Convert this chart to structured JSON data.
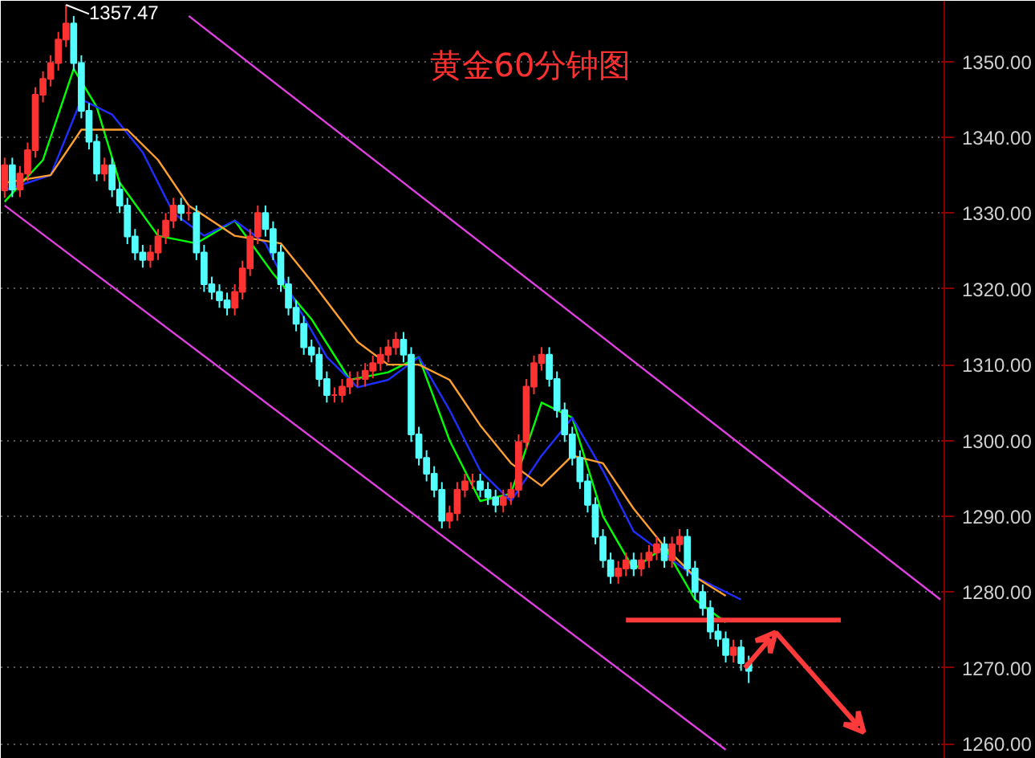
{
  "chart_data": {
    "type": "candlestick",
    "title": "黄金60分钟图",
    "categories": [
      null,
      null,
      null,
      null,
      null,
      null,
      null,
      null,
      null,
      null,
      null,
      null,
      null,
      null,
      null,
      null,
      null,
      null,
      null,
      null,
      null,
      null,
      null,
      null,
      null,
      null,
      null,
      null,
      null,
      null,
      null,
      null,
      null,
      null,
      null,
      null,
      null,
      null,
      null,
      null,
      null,
      null,
      null,
      null,
      null,
      null,
      null,
      null,
      null,
      null,
      null,
      null,
      null,
      null,
      null,
      null,
      null,
      null,
      null,
      null,
      null,
      null,
      null,
      null,
      null,
      null,
      null,
      null,
      null,
      null,
      null,
      null,
      null,
      null,
      null,
      null,
      null,
      null,
      null,
      null,
      null,
      null,
      null,
      null,
      null,
      null,
      null,
      null,
      null,
      null,
      null,
      null,
      null,
      null,
      null,
      null,
      null,
      null,
      null,
      null,
      null,
      null,
      null,
      null,
      null,
      null,
      null,
      null,
      null,
      null,
      null,
      null,
      null,
      null,
      null,
      null,
      null,
      null,
      null,
      null,
      null,
      null,
      null
    ],
    "ohlc": [
      [
        1333.0,
        1337.3,
        1332.0,
        1336.3
      ],
      [
        1336.3,
        1337.3,
        1332.1,
        1333.1
      ],
      [
        1333.1,
        1336.2,
        1332.1,
        1335.2
      ],
      [
        1335.2,
        1339.3,
        1334.2,
        1338.3
      ],
      [
        1338.3,
        1346.6,
        1337.3,
        1345.6
      ],
      [
        1345.6,
        1348.7,
        1344.6,
        1347.7
      ],
      [
        1347.7,
        1350.8,
        1346.7,
        1349.8
      ],
      [
        1349.8,
        1353.9,
        1348.8,
        1352.9
      ],
      [
        1352.9,
        1357.47,
        1351.9,
        1355.0
      ],
      [
        1355.0,
        1356.0,
        1348.8,
        1349.8
      ],
      [
        1349.8,
        1350.8,
        1342.5,
        1343.5
      ],
      [
        1343.5,
        1344.5,
        1338.4,
        1339.4
      ],
      [
        1339.4,
        1340.4,
        1334.2,
        1335.2
      ],
      [
        1335.2,
        1337.3,
        1334.2,
        1336.3
      ],
      [
        1336.3,
        1337.3,
        1332.1,
        1333.1
      ],
      [
        1333.1,
        1334.1,
        1330.0,
        1331.0
      ],
      [
        1331.0,
        1332.0,
        1325.9,
        1326.9
      ],
      [
        1326.9,
        1327.9,
        1323.8,
        1324.8
      ],
      [
        1324.8,
        1325.8,
        1322.8,
        1323.8
      ],
      [
        1323.8,
        1325.8,
        1322.8,
        1324.8
      ],
      [
        1324.8,
        1327.9,
        1323.8,
        1326.9
      ],
      [
        1326.9,
        1330.0,
        1325.9,
        1329.0
      ],
      [
        1329.0,
        1332.0,
        1328.0,
        1331.0
      ],
      [
        1331.0,
        1332.0,
        1329.0,
        1330.0
      ],
      [
        1330.0,
        1331.0,
        1329.0,
        1330.0
      ],
      [
        1330.0,
        1331.0,
        1323.8,
        1324.8
      ],
      [
        1324.8,
        1325.8,
        1319.6,
        1320.6
      ],
      [
        1320.6,
        1321.6,
        1318.6,
        1319.6
      ],
      [
        1319.6,
        1320.6,
        1317.5,
        1318.5
      ],
      [
        1318.5,
        1319.5,
        1316.5,
        1317.5
      ],
      [
        1317.5,
        1320.6,
        1316.5,
        1319.6
      ],
      [
        1319.6,
        1323.7,
        1318.6,
        1322.7
      ],
      [
        1322.7,
        1327.9,
        1321.7,
        1326.9
      ],
      [
        1326.9,
        1331.0,
        1325.9,
        1330.0
      ],
      [
        1330.0,
        1331.0,
        1326.9,
        1327.9
      ],
      [
        1327.9,
        1328.9,
        1323.8,
        1324.8
      ],
      [
        1324.8,
        1325.8,
        1319.6,
        1320.6
      ],
      [
        1320.6,
        1321.6,
        1316.5,
        1317.5
      ],
      [
        1317.5,
        1318.5,
        1314.4,
        1315.4
      ],
      [
        1315.4,
        1316.4,
        1311.3,
        1312.3
      ],
      [
        1312.3,
        1313.3,
        1310.3,
        1311.3
      ],
      [
        1311.3,
        1312.3,
        1307.1,
        1308.1
      ],
      [
        1308.1,
        1309.1,
        1305.0,
        1306.0
      ],
      [
        1306.0,
        1307.0,
        1305.0,
        1306.0
      ],
      [
        1306.0,
        1308.1,
        1305.0,
        1307.1
      ],
      [
        1307.1,
        1309.1,
        1306.1,
        1308.1
      ],
      [
        1308.1,
        1309.1,
        1307.1,
        1308.1
      ],
      [
        1308.1,
        1310.2,
        1307.1,
        1309.2
      ],
      [
        1309.2,
        1311.2,
        1308.2,
        1310.2
      ],
      [
        1310.2,
        1312.3,
        1309.2,
        1311.3
      ],
      [
        1311.3,
        1313.3,
        1310.3,
        1312.3
      ],
      [
        1312.3,
        1314.3,
        1311.3,
        1313.3
      ],
      [
        1313.3,
        1314.3,
        1310.3,
        1311.3
      ],
      [
        1311.3,
        1312.3,
        1299.8,
        1300.8
      ],
      [
        1300.8,
        1301.8,
        1296.7,
        1297.7
      ],
      [
        1297.7,
        1298.7,
        1294.6,
        1295.6
      ],
      [
        1295.6,
        1296.6,
        1292.5,
        1293.5
      ],
      [
        1293.5,
        1294.5,
        1288.4,
        1289.4
      ],
      [
        1289.4,
        1291.4,
        1288.4,
        1290.4
      ],
      [
        1290.4,
        1294.5,
        1289.4,
        1293.5
      ],
      [
        1293.5,
        1295.6,
        1292.5,
        1294.6
      ],
      [
        1294.6,
        1295.6,
        1293.6,
        1294.6
      ],
      [
        1294.6,
        1295.6,
        1292.5,
        1293.5
      ],
      [
        1293.5,
        1294.5,
        1291.5,
        1292.5
      ],
      [
        1292.5,
        1293.5,
        1290.5,
        1291.5
      ],
      [
        1291.5,
        1293.5,
        1290.5,
        1292.5
      ],
      [
        1292.5,
        1294.5,
        1291.5,
        1293.5
      ],
      [
        1293.5,
        1300.8,
        1292.5,
        1299.8
      ],
      [
        1299.8,
        1308.1,
        1298.8,
        1307.1
      ],
      [
        1307.1,
        1311.2,
        1306.1,
        1310.2
      ],
      [
        1310.2,
        1312.3,
        1309.2,
        1311.3
      ],
      [
        1311.3,
        1312.3,
        1307.1,
        1308.1
      ],
      [
        1308.1,
        1309.1,
        1303.0,
        1304.0
      ],
      [
        1304.0,
        1305.0,
        1299.8,
        1300.8
      ],
      [
        1300.8,
        1301.8,
        1296.7,
        1297.7
      ],
      [
        1297.7,
        1298.7,
        1293.6,
        1294.6
      ],
      [
        1294.6,
        1295.6,
        1290.5,
        1291.5
      ],
      [
        1291.5,
        1292.5,
        1286.3,
        1287.3
      ],
      [
        1287.3,
        1288.3,
        1283.2,
        1284.2
      ],
      [
        1284.2,
        1285.2,
        1281.1,
        1282.1
      ],
      [
        1282.1,
        1284.1,
        1281.1,
        1283.1
      ],
      [
        1283.1,
        1285.2,
        1282.1,
        1284.2
      ],
      [
        1284.2,
        1285.2,
        1282.1,
        1283.1
      ],
      [
        1283.1,
        1285.2,
        1282.1,
        1284.2
      ],
      [
        1284.2,
        1286.2,
        1283.2,
        1285.2
      ],
      [
        1285.2,
        1287.3,
        1284.2,
        1286.3
      ],
      [
        1286.3,
        1287.3,
        1283.2,
        1284.2
      ],
      [
        1284.2,
        1287.3,
        1283.2,
        1286.3
      ],
      [
        1286.3,
        1288.3,
        1285.3,
        1287.3
      ],
      [
        1287.3,
        1288.3,
        1282.1,
        1283.1
      ],
      [
        1283.1,
        1284.1,
        1279.0,
        1280.0
      ],
      [
        1280.0,
        1281.0,
        1276.9,
        1277.9
      ],
      [
        1277.9,
        1278.9,
        1273.8,
        1274.8
      ],
      [
        1274.8,
        1275.8,
        1272.8,
        1273.8
      ],
      [
        1273.8,
        1274.8,
        1270.7,
        1271.7
      ],
      [
        1271.7,
        1273.7,
        1270.7,
        1272.7
      ],
      [
        1272.7,
        1273.7,
        1269.6,
        1270.6
      ],
      [
        1270.6,
        1271.6,
        1268.0,
        1269.6
      ],
      null,
      null,
      null,
      null,
      null,
      null,
      null,
      null,
      null,
      null,
      null,
      null,
      null,
      null,
      null,
      null,
      null,
      null,
      null,
      null,
      null,
      null,
      null,
      null,
      null
    ],
    "series": [
      {
        "type": "line",
        "color": "#00ff00",
        "values": [
          1331.5,
          null,
          null,
          null,
          null,
          1337,
          null,
          null,
          null,
          1349,
          null,
          null,
          1344,
          null,
          null,
          1334,
          null,
          null,
          null,
          null,
          1327,
          null,
          null,
          null,
          null,
          1326,
          null,
          null,
          null,
          null,
          1329,
          null,
          null,
          null,
          null,
          1322,
          null,
          null,
          null,
          null,
          1316,
          null,
          null,
          null,
          null,
          1308,
          null,
          null,
          null,
          null,
          1309,
          null,
          null,
          null,
          1311,
          null,
          null,
          null,
          1300,
          null,
          null,
          null,
          1292,
          null,
          null,
          null,
          1293,
          null,
          null,
          null,
          1305,
          null,
          null,
          null,
          1303,
          null,
          null,
          null,
          1290,
          null,
          null,
          null,
          1283,
          null,
          null,
          null,
          1286,
          null,
          null,
          null,
          1279,
          null,
          null,
          null,
          1276,
          null,
          null,
          null,
          null,
          null,
          null,
          null,
          null,
          null,
          null,
          null,
          null,
          null,
          null,
          null,
          null,
          null,
          null,
          null,
          null,
          null,
          null,
          null,
          null,
          null,
          null,
          null,
          null
        ]
      },
      {
        "type": "line",
        "color": "#1f2fff",
        "values": [
          1333,
          null,
          null,
          null,
          null,
          null,
          1335,
          null,
          null,
          null,
          1345,
          null,
          null,
          null,
          1343,
          null,
          null,
          null,
          1338,
          null,
          null,
          null,
          1330,
          null,
          null,
          null,
          1327,
          null,
          null,
          null,
          1329,
          null,
          null,
          null,
          1326,
          null,
          null,
          null,
          1318,
          null,
          null,
          null,
          1311,
          null,
          null,
          null,
          1307,
          null,
          null,
          null,
          1308,
          null,
          null,
          null,
          1311,
          null,
          null,
          null,
          1304,
          null,
          null,
          null,
          1296,
          null,
          null,
          null,
          1292,
          null,
          null,
          null,
          1298,
          null,
          null,
          null,
          1303,
          null,
          null,
          null,
          1296,
          null,
          null,
          null,
          1288,
          null,
          null,
          null,
          1285,
          null,
          null,
          null,
          1282,
          null,
          null,
          null,
          null,
          null,
          1279,
          null,
          null,
          null,
          null,
          null,
          null,
          null,
          null,
          null,
          null,
          null,
          null,
          null,
          null,
          null,
          null,
          null,
          null,
          null,
          null,
          null,
          null,
          null,
          null,
          null,
          null
        ]
      },
      {
        "type": "line",
        "color": "#ff9f2f",
        "values": [
          1334,
          null,
          null,
          null,
          null,
          null,
          1335,
          null,
          null,
          null,
          1341,
          null,
          null,
          null,
          null,
          null,
          1341,
          null,
          null,
          null,
          1337,
          null,
          null,
          null,
          1331,
          null,
          null,
          null,
          null,
          null,
          1327,
          null,
          null,
          null,
          null,
          null,
          1326,
          null,
          null,
          null,
          1321,
          null,
          null,
          null,
          null,
          null,
          1313,
          null,
          null,
          null,
          1310,
          null,
          null,
          null,
          1310,
          null,
          null,
          null,
          1308,
          null,
          null,
          null,
          1302,
          null,
          null,
          null,
          1297,
          null,
          null,
          null,
          1294,
          null,
          null,
          null,
          1298,
          null,
          null,
          null,
          1297,
          null,
          null,
          null,
          1291,
          null,
          null,
          null,
          1286,
          null,
          null,
          null,
          1282,
          null,
          null,
          null,
          1279.5,
          null,
          null,
          null,
          null,
          null,
          null,
          null,
          null,
          null,
          null,
          null,
          null,
          null,
          null,
          null,
          null,
          null,
          null,
          null,
          null,
          null,
          null,
          null,
          null,
          null,
          null,
          null,
          null
        ]
      },
      {
        "type": "line",
        "color": "#e040e0",
        "values": [
          null,
          null,
          null,
          null,
          null,
          null,
          null,
          null,
          null,
          null,
          null,
          null,
          null,
          null,
          null,
          null,
          null,
          null,
          null,
          null,
          null,
          null,
          null,
          null,
          1356.0,
          null,
          null,
          null,
          null,
          null,
          null,
          null,
          null,
          null,
          null,
          null,
          null,
          null,
          null,
          null,
          null,
          null,
          null,
          null,
          null,
          null,
          null,
          null,
          null,
          null,
          null,
          null,
          null,
          null,
          null,
          null,
          null,
          null,
          null,
          null,
          null,
          null,
          null,
          null,
          null,
          null,
          null,
          null,
          null,
          null,
          null,
          null,
          null,
          null,
          null,
          null,
          null,
          null,
          null,
          null,
          null,
          null,
          null,
          null,
          null,
          null,
          null,
          null,
          null,
          null,
          null,
          null,
          null,
          null,
          null,
          null,
          null,
          null,
          null,
          null,
          null,
          null,
          null,
          null,
          null,
          null,
          null,
          null,
          null,
          null,
          null,
          null,
          null,
          null,
          null,
          null,
          null,
          null,
          null,
          null,
          null,
          null,
          1279.0
        ]
      },
      {
        "type": "line",
        "color": "#e040e0",
        "values": [
          1331.0,
          null,
          null,
          null,
          null,
          null,
          null,
          null,
          null,
          null,
          null,
          null,
          null,
          null,
          null,
          null,
          null,
          null,
          null,
          null,
          null,
          null,
          null,
          null,
          null,
          null,
          null,
          null,
          null,
          null,
          null,
          null,
          null,
          null,
          null,
          null,
          null,
          null,
          null,
          null,
          null,
          null,
          null,
          null,
          null,
          null,
          null,
          null,
          null,
          null,
          null,
          null,
          null,
          null,
          null,
          null,
          null,
          null,
          null,
          null,
          null,
          null,
          null,
          null,
          null,
          null,
          null,
          null,
          null,
          null,
          null,
          null,
          null,
          null,
          null,
          null,
          null,
          null,
          null,
          null,
          null,
          null,
          null,
          null,
          null,
          null,
          null,
          null,
          null,
          null,
          null,
          null,
          null,
          null,
          1259.2,
          null,
          null,
          null,
          null,
          null,
          null,
          null,
          null,
          null,
          null,
          null,
          null,
          null,
          null,
          null,
          null,
          null,
          null,
          null,
          null,
          null,
          null,
          null,
          null,
          null,
          null,
          null,
          null
        ]
      },
      {
        "type": "line",
        "color": "#ff3a3a",
        "values": [
          null,
          null,
          null,
          null,
          null,
          null,
          null,
          null,
          null,
          null,
          null,
          null,
          null,
          null,
          null,
          null,
          null,
          null,
          null,
          null,
          null,
          null,
          null,
          null,
          null,
          null,
          null,
          null,
          null,
          null,
          null,
          null,
          null,
          null,
          null,
          null,
          null,
          null,
          null,
          null,
          null,
          null,
          null,
          null,
          null,
          null,
          null,
          null,
          null,
          null,
          null,
          null,
          null,
          null,
          null,
          null,
          null,
          null,
          null,
          null,
          null,
          null,
          null,
          null,
          null,
          null,
          null,
          null,
          null,
          null,
          null,
          null,
          null,
          null,
          null,
          null,
          null,
          null,
          null,
          null,
          null,
          1276.3,
          null,
          null,
          null,
          null,
          null,
          null,
          null,
          null,
          null,
          null,
          null,
          null,
          null,
          null,
          null,
          null,
          null,
          null,
          null,
          null,
          null,
          null,
          null,
          null,
          null,
          null,
          null,
          1276.3,
          null,
          null,
          null,
          null,
          null,
          null,
          null,
          null,
          null,
          null,
          null,
          null,
          null
        ]
      }
    ],
    "ylim": [
      1258,
      1358
    ],
    "yticks": [
      {
        "value": 1260,
        "label": "1260.00"
      },
      {
        "value": 1270,
        "label": "1270.00"
      },
      {
        "value": 1280,
        "label": "1280.00"
      },
      {
        "value": 1290,
        "label": "1290.00"
      },
      {
        "value": 1300,
        "label": "1300.00"
      },
      {
        "value": 1310,
        "label": "1310.00"
      },
      {
        "value": 1320,
        "label": "1320.00"
      },
      {
        "value": 1330,
        "label": "1330.00"
      },
      {
        "value": 1340,
        "label": "1340.00"
      },
      {
        "value": 1350,
        "label": "1350.00"
      }
    ],
    "grid": "y",
    "tick_labels": "y",
    "annotations": [
      "1357.47"
    ]
  }
}
